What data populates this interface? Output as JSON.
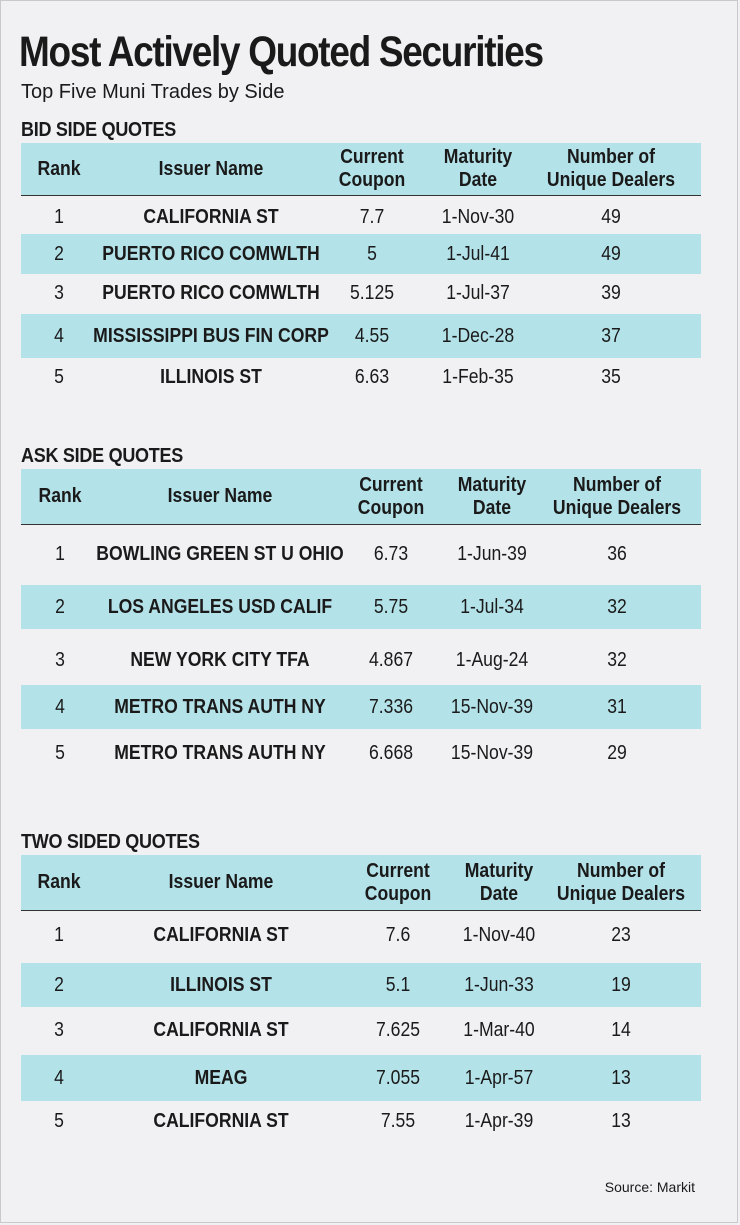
{
  "title": "Most Actively Quoted Securities",
  "subtitle": "Top Five Muni Trades by Side",
  "columns": {
    "rank": "Rank",
    "issuer": "Issuer Name",
    "coupon_1": "Current",
    "coupon_2": "Coupon",
    "maturity_1": "Maturity",
    "maturity_2": "Date",
    "dealers_1": "Number of",
    "dealers_2": "Unique Dealers"
  },
  "bid": {
    "title": "BID SIDE QUOTES",
    "rows": [
      {
        "rank": "1",
        "issuer": "CALIFORNIA ST",
        "coupon": "7.7",
        "maturity": "1-Nov-30",
        "dealers": "49"
      },
      {
        "rank": "2",
        "issuer": "PUERTO RICO COMWLTH",
        "coupon": "5",
        "maturity": "1-Jul-41",
        "dealers": "49"
      },
      {
        "rank": "3",
        "issuer": "PUERTO RICO COMWLTH",
        "coupon": "5.125",
        "maturity": "1-Jul-37",
        "dealers": "39"
      },
      {
        "rank": "4",
        "issuer": "MISSISSIPPI BUS FIN CORP",
        "coupon": "4.55",
        "maturity": "1-Dec-28",
        "dealers": "37"
      },
      {
        "rank": "5",
        "issuer": "ILLINOIS ST",
        "coupon": "6.63",
        "maturity": "1-Feb-35",
        "dealers": "35"
      }
    ]
  },
  "ask": {
    "title": "ASK SIDE QUOTES",
    "rows": [
      {
        "rank": "1",
        "issuer": "BOWLING GREEN ST U OHIO",
        "coupon": "6.73",
        "maturity": "1-Jun-39",
        "dealers": "36"
      },
      {
        "rank": "2",
        "issuer": "LOS ANGELES USD CALIF",
        "coupon": "5.75",
        "maturity": "1-Jul-34",
        "dealers": "32"
      },
      {
        "rank": "3",
        "issuer": "NEW YORK CITY TFA",
        "coupon": "4.867",
        "maturity": "1-Aug-24",
        "dealers": "32"
      },
      {
        "rank": "4",
        "issuer": "METRO TRANS AUTH NY",
        "coupon": "7.336",
        "maturity": "15-Nov-39",
        "dealers": "31"
      },
      {
        "rank": "5",
        "issuer": "METRO TRANS AUTH NY",
        "coupon": "6.668",
        "maturity": "15-Nov-39",
        "dealers": "29"
      }
    ]
  },
  "two": {
    "title": "TWO SIDED QUOTES",
    "rows": [
      {
        "rank": "1",
        "issuer": "CALIFORNIA ST",
        "coupon": "7.6",
        "maturity": "1-Nov-40",
        "dealers": "23"
      },
      {
        "rank": "2",
        "issuer": "ILLINOIS ST",
        "coupon": "5.1",
        "maturity": "1-Jun-33",
        "dealers": "19"
      },
      {
        "rank": "3",
        "issuer": "CALIFORNIA ST",
        "coupon": "7.625",
        "maturity": "1-Mar-40",
        "dealers": "14"
      },
      {
        "rank": "4",
        "issuer": "MEAG",
        "coupon": "7.055",
        "maturity": "1-Apr-57",
        "dealers": "13"
      },
      {
        "rank": "5",
        "issuer": "CALIFORNIA ST",
        "coupon": "7.55",
        "maturity": "1-Apr-39",
        "dealers": "13"
      }
    ]
  },
  "source": "Source: Markit"
}
